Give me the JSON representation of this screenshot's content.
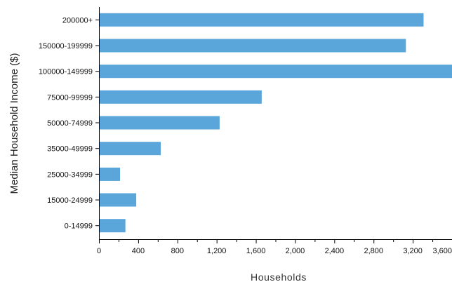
{
  "chart_data": {
    "type": "bar",
    "orientation": "horizontal",
    "categories": [
      "200000+",
      "150000-199999",
      "100000-149999",
      "75000-99999",
      "50000-74999",
      "35000-49999",
      "25000-34999",
      "15000-24999",
      "0-14999"
    ],
    "values": [
      3310,
      3130,
      3800,
      1660,
      1230,
      630,
      215,
      380,
      270
    ],
    "xlabel": "Households",
    "ylabel": "Median Household Income ($)",
    "xlim": [
      0,
      3600
    ],
    "x_ticks": [
      0,
      400,
      800,
      1200,
      1600,
      2000,
      2400,
      2800,
      3200,
      3600
    ],
    "x_tick_labels": [
      "0",
      "400",
      "800",
      "1,200",
      "1,600",
      "2,000",
      "2,400",
      "2,800",
      "3,200",
      "3,600"
    ],
    "grid": false,
    "bar_color": "#5aa5da"
  }
}
